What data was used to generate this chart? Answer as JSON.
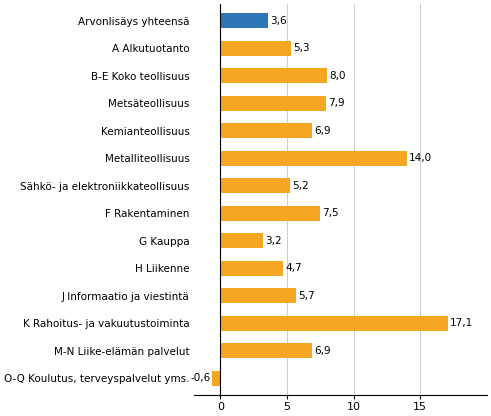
{
  "categories": [
    "Arvonlisäys yhteensä",
    "A Alkutuotanto",
    "B-E Koko teollisuus",
    "Metsäteollisuus",
    "Kemianteollisuus",
    "Metalliteollisuus",
    "Sähkö- ja elektroniikkateollisuus",
    "F Rakentaminen",
    "G Kauppa",
    "H Liikenne",
    "J Informaatio ja viestintä",
    "K Rahoitus- ja vakuutustoiminta",
    "M-N Liike-elämän palvelut",
    "O-Q Koulutus, terveyspalvelut yms."
  ],
  "values": [
    3.6,
    5.3,
    8.0,
    7.9,
    6.9,
    14.0,
    5.2,
    7.5,
    3.2,
    4.7,
    5.7,
    17.1,
    6.9,
    -0.6
  ],
  "colors": [
    "#2e75b6",
    "#f5a623",
    "#f5a623",
    "#f5a623",
    "#f5a623",
    "#f5a623",
    "#f5a623",
    "#f5a623",
    "#f5a623",
    "#f5a623",
    "#f5a623",
    "#f5a623",
    "#f5a623",
    "#f5a623"
  ],
  "value_labels": [
    "3,6",
    "5,3",
    "8,0",
    "7,9",
    "6,9",
    "14,0",
    "5,2",
    "7,5",
    "3,2",
    "4,7",
    "5,7",
    "17,1",
    "6,9",
    "-0,6"
  ],
  "xlim": [
    -2,
    20
  ],
  "xticks": [
    0,
    5,
    10,
    15
  ],
  "bar_height": 0.55,
  "figure_width": 4.91,
  "figure_height": 4.16,
  "dpi": 100,
  "label_fontsize": 7.5,
  "value_fontsize": 7.5,
  "tick_fontsize": 8.0,
  "grid_color": "#cccccc",
  "background_color": "#ffffff"
}
